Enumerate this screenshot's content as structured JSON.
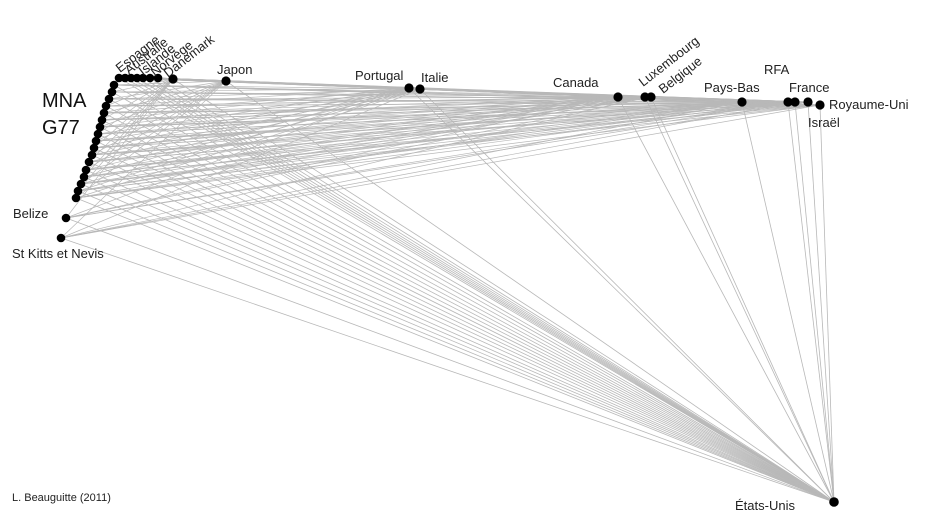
{
  "labels": {
    "mna": "MNA",
    "g77": "G77",
    "belize": "Belize",
    "st_kitts": "St Kitts et Nevis",
    "espagne": "Espagne",
    "australie": "Australie",
    "islande": "Islande",
    "norvege": "Norvège",
    "danemark": "Danemark",
    "japon": "Japon",
    "portugal": "Portugal",
    "italie": "Italie",
    "canada": "Canada",
    "luxembourg": "Luxembourg",
    "belgique": "Belgique",
    "pays_bas": "Pays-Bas",
    "rfa": "RFA",
    "france": "France",
    "royaume_uni": "Royaume-Uni",
    "israel": "Israël",
    "etats_unis": "États-Unis"
  },
  "credit": "L. Beauguitte (2011)",
  "colors": {
    "edge": "#b8b8b8",
    "node": "#000000",
    "text": "#222222"
  }
}
